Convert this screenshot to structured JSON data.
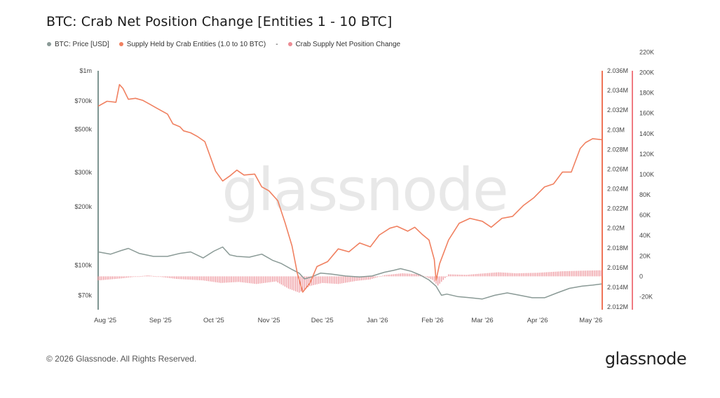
{
  "title": "BTC: Crab Net Position Change [Entities 1 - 10 BTC]",
  "legend": {
    "price": "BTC: Price [USD]",
    "supply": "Supply Held by Crab Entities (1.0 to 10 BTC)",
    "separator": "-",
    "change": "Crab Supply Net Position Change"
  },
  "colors": {
    "price": "#8a9a96",
    "supply": "#f08060",
    "change": "#ec8c94",
    "axis_price": "#7f9692",
    "axis_supply": "#ef7458",
    "axis_change": "#ef7a82"
  },
  "watermark": "glassnode",
  "footer": "© 2026 Glassnode. All Rights Reserved.",
  "brand": "glassnode",
  "chart_data": {
    "type": "line",
    "x_ticks": [
      "Aug '25",
      "Sep '25",
      "Oct '25",
      "Nov '25",
      "Dec '25",
      "Jan '26",
      "Feb '26",
      "Mar '26",
      "Apr '26",
      "May '26"
    ],
    "x_range": [
      "2025-07-28",
      "2026-05-07"
    ],
    "axes": {
      "price": {
        "scale": "log",
        "range": [
          60000,
          1000000
        ],
        "ticks": [
          70000,
          100000,
          200000,
          300000,
          500000,
          700000,
          1000000
        ],
        "tick_labels": [
          "$70k",
          "$100k",
          "$200k",
          "$300k",
          "$500k",
          "$700k",
          "$1m"
        ]
      },
      "supply": {
        "scale": "linear",
        "range": [
          2012000,
          2036000
        ],
        "ticks": [
          2012000,
          2014000,
          2016000,
          2018000,
          2020000,
          2022000,
          2024000,
          2026000,
          2028000,
          2030000,
          2032000,
          2034000,
          2036000
        ],
        "tick_labels": [
          "2.012M",
          "2.014M",
          "2.016M",
          "2.018M",
          "2.02M",
          "2.022M",
          "2.024M",
          "2.026M",
          "2.028M",
          "2.03M",
          "2.032M",
          "2.034M",
          "2.036M"
        ]
      },
      "change": {
        "scale": "linear",
        "range": [
          -30000,
          220000
        ],
        "ticks": [
          -20000,
          0,
          20000,
          40000,
          60000,
          80000,
          100000,
          120000,
          140000,
          160000,
          180000,
          200000,
          220000
        ],
        "tick_labels": [
          "-20K",
          "0",
          "20K",
          "40K",
          "60K",
          "80K",
          "100K",
          "120K",
          "140K",
          "160K",
          "180K",
          "200K",
          "220K"
        ]
      }
    },
    "series": [
      {
        "name": "BTC: Price [USD]",
        "axis": "price",
        "x": [
          "2025-07-28",
          "2025-08-04",
          "2025-08-10",
          "2025-08-14",
          "2025-08-20",
          "2025-08-28",
          "2025-09-05",
          "2025-09-12",
          "2025-09-18",
          "2025-09-25",
          "2025-10-01",
          "2025-10-06",
          "2025-10-10",
          "2025-10-14",
          "2025-10-21",
          "2025-10-28",
          "2025-11-03",
          "2025-11-08",
          "2025-11-14",
          "2025-11-18",
          "2025-11-21",
          "2025-11-25",
          "2025-11-30",
          "2025-12-06",
          "2025-12-14",
          "2025-12-22",
          "2025-12-29",
          "2026-01-05",
          "2026-01-10",
          "2026-01-14",
          "2026-01-20",
          "2026-01-25",
          "2026-01-30",
          "2026-02-03",
          "2026-02-06",
          "2026-02-09",
          "2026-02-15",
          "2026-02-22",
          "2026-03-01",
          "2026-03-08",
          "2026-03-15",
          "2026-03-22",
          "2026-03-29",
          "2026-04-05",
          "2026-04-12",
          "2026-04-19",
          "2026-04-26",
          "2026-05-02",
          "2026-05-07"
        ],
        "values": [
          117000,
          114000,
          119000,
          122000,
          115000,
          111000,
          111000,
          115000,
          117000,
          109000,
          118000,
          124000,
          113000,
          111000,
          110000,
          114000,
          106000,
          102000,
          95000,
          91000,
          85000,
          87000,
          91000,
          90000,
          88000,
          87000,
          88000,
          92000,
          94000,
          96000,
          93000,
          89000,
          84000,
          78000,
          70000,
          71000,
          69000,
          68000,
          67000,
          70000,
          72000,
          70000,
          68000,
          68000,
          72000,
          76000,
          78000,
          79000,
          80000
        ]
      },
      {
        "name": "Supply Held by Crab Entities (1.0 to 10 BTC)",
        "axis": "supply",
        "x": [
          "2025-07-28",
          "2025-08-02",
          "2025-08-07",
          "2025-08-09",
          "2025-08-11",
          "2025-08-14",
          "2025-08-18",
          "2025-08-22",
          "2025-08-26",
          "2025-08-30",
          "2025-09-05",
          "2025-09-08",
          "2025-09-12",
          "2025-09-14",
          "2025-09-18",
          "2025-09-22",
          "2025-09-26",
          "2025-10-02",
          "2025-10-06",
          "2025-10-10",
          "2025-10-14",
          "2025-10-18",
          "2025-10-24",
          "2025-10-28",
          "2025-11-01",
          "2025-11-06",
          "2025-11-10",
          "2025-11-14",
          "2025-11-17",
          "2025-11-20",
          "2025-11-24",
          "2025-11-28",
          "2025-12-04",
          "2025-12-10",
          "2025-12-16",
          "2025-12-22",
          "2025-12-28",
          "2026-01-02",
          "2026-01-08",
          "2026-01-12",
          "2026-01-18",
          "2026-01-22",
          "2026-01-26",
          "2026-01-30",
          "2026-02-02",
          "2026-02-03",
          "2026-02-05",
          "2026-02-10",
          "2026-02-16",
          "2026-02-22",
          "2026-03-01",
          "2026-03-06",
          "2026-03-12",
          "2026-03-18",
          "2026-03-24",
          "2026-03-30",
          "2026-04-05",
          "2026-04-10",
          "2026-04-15",
          "2026-04-20",
          "2026-04-25",
          "2026-04-28",
          "2026-05-02",
          "2026-05-07"
        ],
        "values": [
          2032400,
          2032900,
          2032800,
          2034600,
          2034200,
          2033100,
          2033200,
          2033000,
          2032600,
          2032200,
          2031600,
          2030600,
          2030300,
          2029900,
          2029700,
          2029300,
          2028800,
          2025800,
          2024800,
          2025300,
          2025900,
          2025400,
          2025500,
          2024200,
          2023800,
          2022800,
          2020600,
          2018200,
          2015400,
          2013500,
          2014400,
          2016100,
          2016600,
          2017900,
          2017600,
          2018500,
          2018100,
          2019300,
          2020000,
          2020200,
          2019700,
          2020100,
          2019400,
          2018800,
          2016800,
          2014700,
          2016400,
          2018800,
          2020500,
          2021000,
          2020700,
          2020100,
          2021000,
          2021200,
          2022300,
          2023100,
          2024200,
          2024500,
          2025700,
          2025700,
          2028100,
          2028700,
          2029100,
          2029000
        ]
      },
      {
        "name": "Crab Supply Net Position Change",
        "axis": "change",
        "type": "bar",
        "x": [
          "2025-07-28",
          "2025-08-10",
          "2025-08-25",
          "2025-09-10",
          "2025-09-25",
          "2025-10-05",
          "2025-10-15",
          "2025-10-25",
          "2025-11-05",
          "2025-11-12",
          "2025-11-18",
          "2025-11-24",
          "2025-12-01",
          "2025-12-10",
          "2025-12-20",
          "2025-12-28",
          "2026-01-05",
          "2026-01-15",
          "2026-01-25",
          "2026-02-01",
          "2026-02-04",
          "2026-02-10",
          "2026-02-20",
          "2026-03-01",
          "2026-03-10",
          "2026-03-20",
          "2026-04-01",
          "2026-04-15",
          "2026-04-25",
          "2026-05-07"
        ],
        "values": [
          -4000,
          -2000,
          1000,
          -2500,
          -4000,
          -6500,
          -5500,
          -7500,
          -5000,
          -12000,
          -16000,
          -9500,
          -6500,
          -7500,
          -4500,
          -3000,
          1200,
          3000,
          2000,
          -3500,
          -9000,
          2000,
          1500,
          2800,
          4000,
          3000,
          3500,
          5000,
          5500,
          6000
        ]
      }
    ]
  }
}
